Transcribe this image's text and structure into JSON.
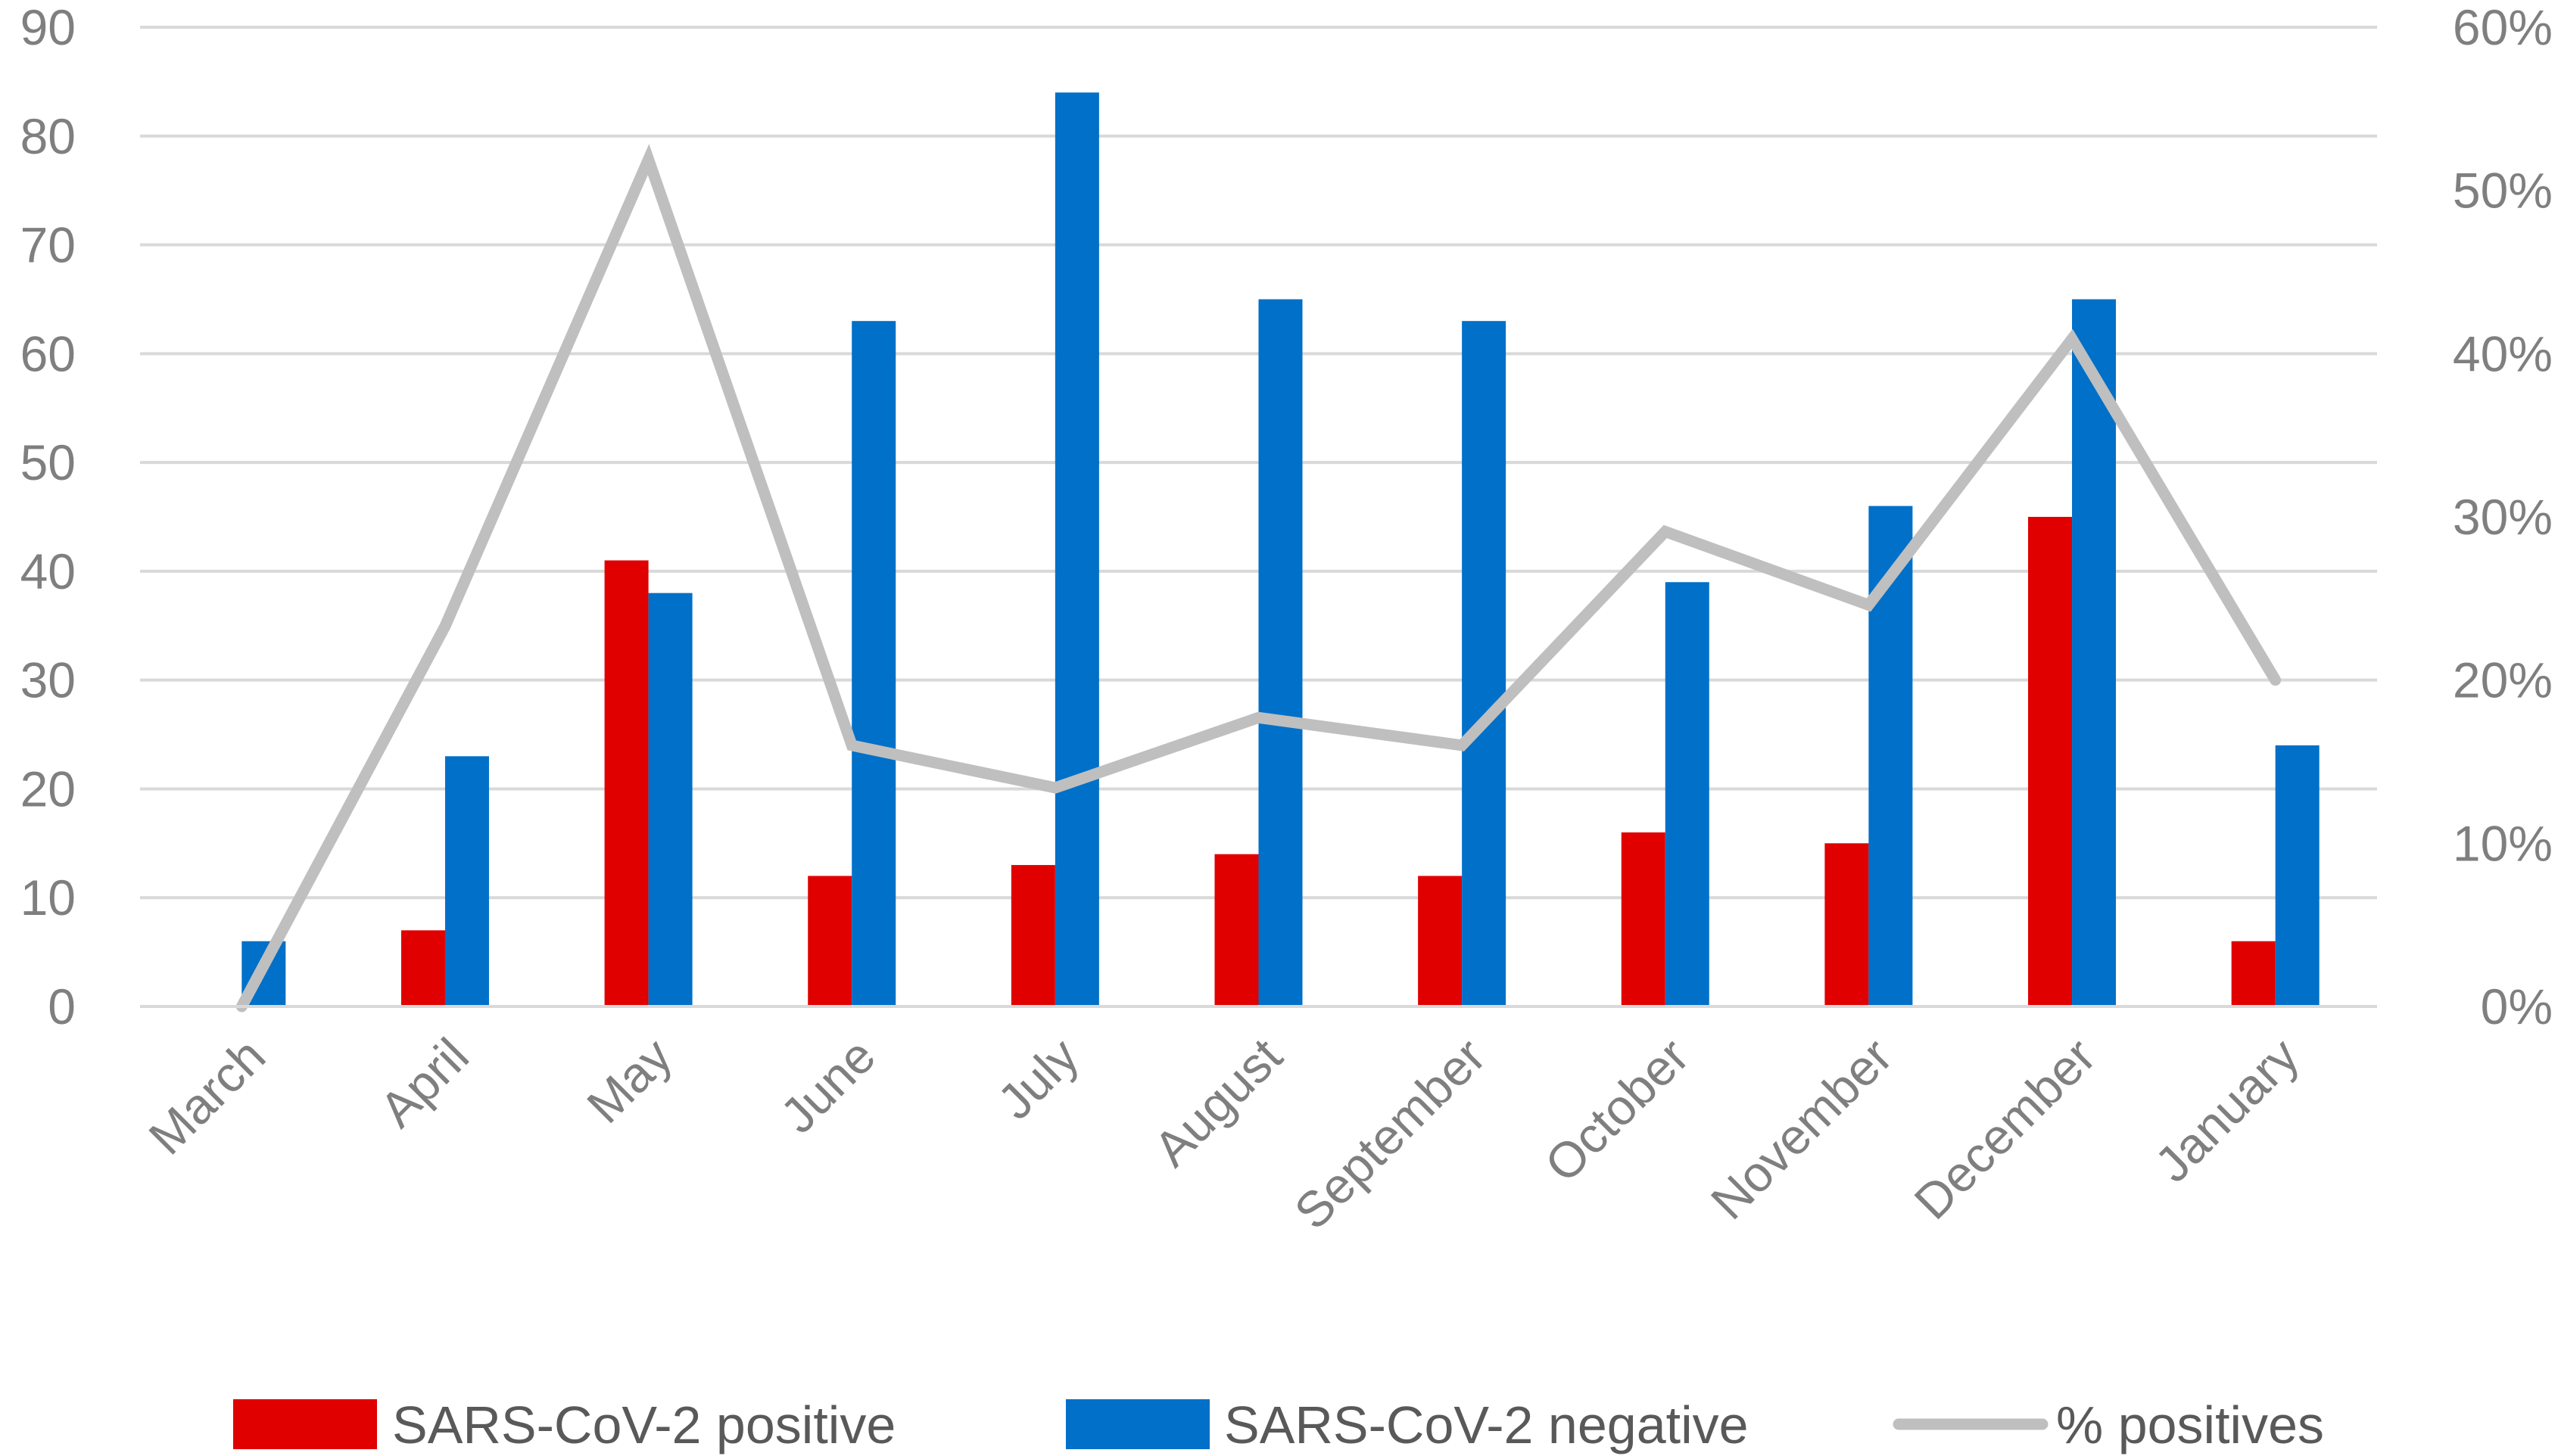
{
  "chart_data": {
    "type": "bar",
    "categories": [
      "March",
      "April",
      "May",
      "June",
      "July",
      "August",
      "September",
      "October",
      "November",
      "December",
      "January"
    ],
    "series": [
      {
        "name": "SARS-CoV-2 positive",
        "kind": "bar",
        "axis": "left",
        "color": "#e00000",
        "values": [
          0,
          7,
          41,
          12,
          13,
          14,
          12,
          16,
          15,
          45,
          6
        ]
      },
      {
        "name": "SARS-CoV-2 negative",
        "kind": "bar",
        "axis": "left",
        "color": "#0070c8",
        "values": [
          6,
          23,
          38,
          63,
          84,
          65,
          63,
          39,
          46,
          65,
          24
        ]
      },
      {
        "name": "% positives",
        "kind": "line",
        "axis": "right",
        "color": "#bfbfbf",
        "values": [
          0,
          23.3,
          51.9,
          16.0,
          13.4,
          17.7,
          16.0,
          29.1,
          24.6,
          40.9,
          20.0
        ]
      }
    ],
    "y_left": {
      "min": 0,
      "max": 90,
      "ticks": [
        "0",
        "10",
        "20",
        "30",
        "40",
        "50",
        "60",
        "70",
        "80",
        "90"
      ]
    },
    "y_right": {
      "min": 0,
      "max": 60,
      "ticks": [
        "0%",
        "10%",
        "20%",
        "30%",
        "40%",
        "50%",
        "60%"
      ]
    },
    "grid": true,
    "legend_position": "bottom",
    "title": "",
    "xlabel": "",
    "ylabel": ""
  }
}
